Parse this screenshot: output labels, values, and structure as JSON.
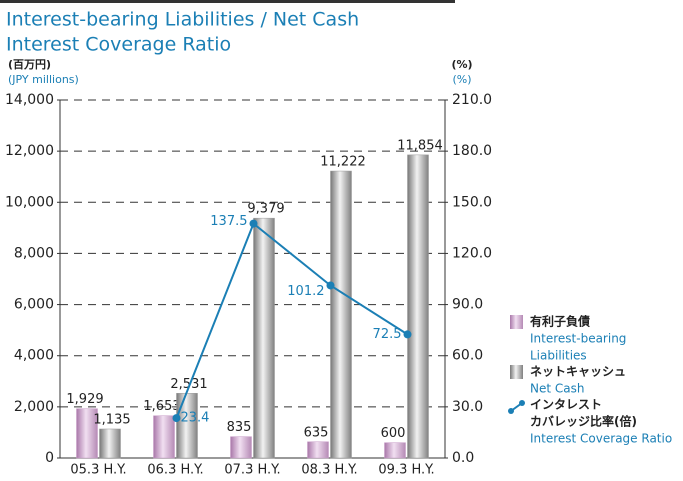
{
  "chart_data": {
    "type": "bar_line",
    "title_lines": [
      "Interest-bearing Liabilities / Net Cash",
      "Interest Coverage Ratio"
    ],
    "y_unit_lines": [
      "(百万円)",
      "(JPY millions)"
    ],
    "y2_unit_lines": [
      "(%)",
      "(%)"
    ],
    "categories": [
      "05.3 H.Y.",
      "06.3 H.Y.",
      "07.3 H.Y.",
      "08.3 H.Y.",
      "09.3 H.Y."
    ],
    "series": [
      {
        "name_lines": [
          "有利子負債"
        ],
        "name_en_lines": [
          "Interest-bearing",
          "Liabilities"
        ],
        "color": "#c79bc7",
        "kind": "bar",
        "values": [
          1929,
          1653,
          835,
          635,
          600
        ],
        "value_labels": [
          "1,929",
          "1,653",
          "835",
          "635",
          "600"
        ]
      },
      {
        "name_lines": [
          "ネットキャッシュ"
        ],
        "name_en_lines": [
          "Net Cash"
        ],
        "color": "#9a9a9a",
        "kind": "bar",
        "values": [
          1135,
          2531,
          9379,
          11222,
          11854
        ],
        "value_labels": [
          "1,135",
          "2,531",
          "9,379",
          "11,222",
          "11,854"
        ]
      },
      {
        "name_lines": [
          "インタレスト",
          "カバレッジ比率(倍)"
        ],
        "name_en_lines": [
          "Interest Coverage Ratio"
        ],
        "color": "#1b7fb5",
        "kind": "line",
        "axis": "y2",
        "values": [
          null,
          23.4,
          137.5,
          101.2,
          72.5
        ]
      }
    ],
    "ylim": [
      0,
      14000
    ],
    "yticks": [
      0,
      {
        "value": 2000,
        "label": "2,000"
      },
      {
        "value": 4000,
        "label": "4,000"
      },
      {
        "value": 6000,
        "label": "6,000"
      },
      {
        "value": 8000,
        "label": "8,000"
      },
      {
        "value": 10000,
        "label": "10,000"
      },
      {
        "value": 12000,
        "label": "12,000"
      },
      {
        "value": 14000,
        "label": "14,000"
      }
    ],
    "y2lim": [
      0,
      210
    ],
    "y2ticks": [
      {
        "value": 0,
        "label": "0.0"
      },
      {
        "value": 30,
        "label": "30.0"
      },
      {
        "value": 60,
        "label": "60.0"
      },
      {
        "value": 90,
        "label": "90.0"
      },
      {
        "value": 120,
        "label": "120.0"
      },
      {
        "value": 150,
        "label": "150.0"
      },
      {
        "value": 180,
        "label": "180.0"
      },
      {
        "value": 210,
        "label": "210.0"
      }
    ],
    "grid": true
  }
}
